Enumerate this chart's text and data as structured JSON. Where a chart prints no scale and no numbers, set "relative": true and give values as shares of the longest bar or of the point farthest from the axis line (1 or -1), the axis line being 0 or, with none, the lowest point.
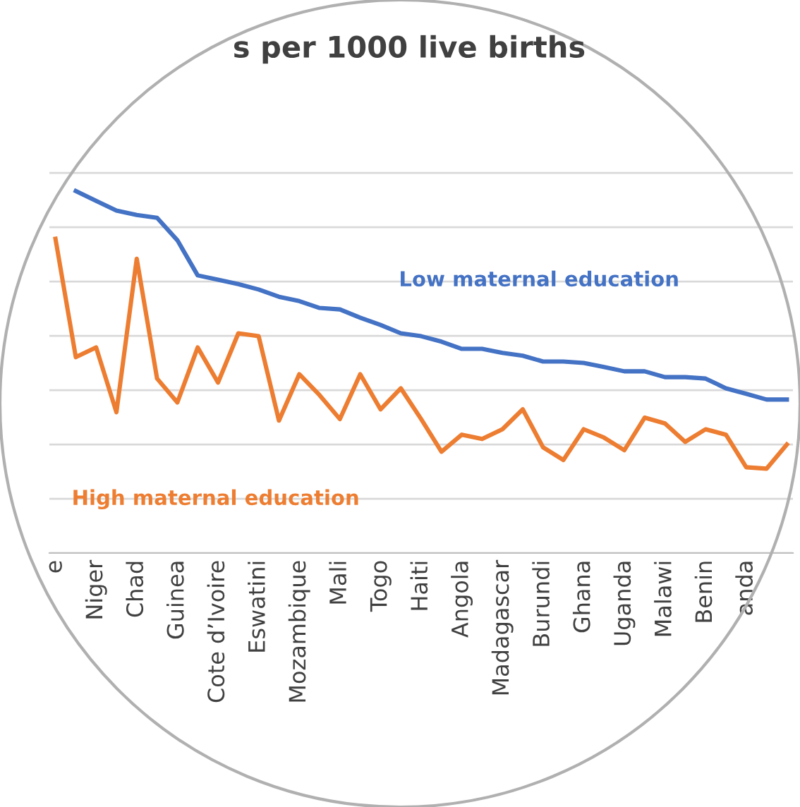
{
  "chart_data": {
    "type": "line",
    "title": "s per 1000 live births",
    "relative": true,
    "grid": "y",
    "legend": false,
    "marker": "none",
    "line_style": "solid",
    "categories": [
      "e",
      null,
      "Niger",
      null,
      "Chad",
      null,
      "Guinea",
      null,
      "Cote d’Ivoire",
      null,
      "Eswatini",
      null,
      "Mozambique",
      null,
      "Mali",
      null,
      "Togo",
      null,
      "Haiti",
      null,
      "Angola",
      null,
      "Madagascar",
      null,
      "Burundi",
      null,
      "Ghana",
      null,
      "Uganda",
      null,
      "Malawi",
      null,
      "Benin",
      null,
      "anda",
      null,
      null
    ],
    "series": [
      {
        "name": "Low maternal education",
        "color": "#4472c4",
        "values": [
          null,
          1.0,
          0.973,
          0.946,
          0.934,
          0.926,
          0.864,
          0.767,
          0.755,
          0.743,
          0.728,
          0.708,
          0.696,
          0.677,
          0.673,
          0.65,
          0.63,
          0.607,
          0.599,
          0.584,
          0.564,
          0.564,
          0.553,
          0.545,
          0.529,
          0.529,
          0.525,
          0.514,
          0.502,
          0.502,
          0.486,
          0.486,
          0.482,
          0.455,
          0.44,
          0.424,
          0.424
        ]
      },
      {
        "name": "High maternal education",
        "color": "#ed7d31",
        "values": [
          0.868,
          0.541,
          0.568,
          0.389,
          0.813,
          0.482,
          0.416,
          0.568,
          0.471,
          0.607,
          0.599,
          0.366,
          0.494,
          0.436,
          0.37,
          0.494,
          0.397,
          0.455,
          0.37,
          0.28,
          0.327,
          0.315,
          0.342,
          0.397,
          0.292,
          0.257,
          0.342,
          0.319,
          0.284,
          0.374,
          0.358,
          0.307,
          0.342,
          0.327,
          0.237,
          0.233,
          0.3
        ]
      }
    ]
  }
}
